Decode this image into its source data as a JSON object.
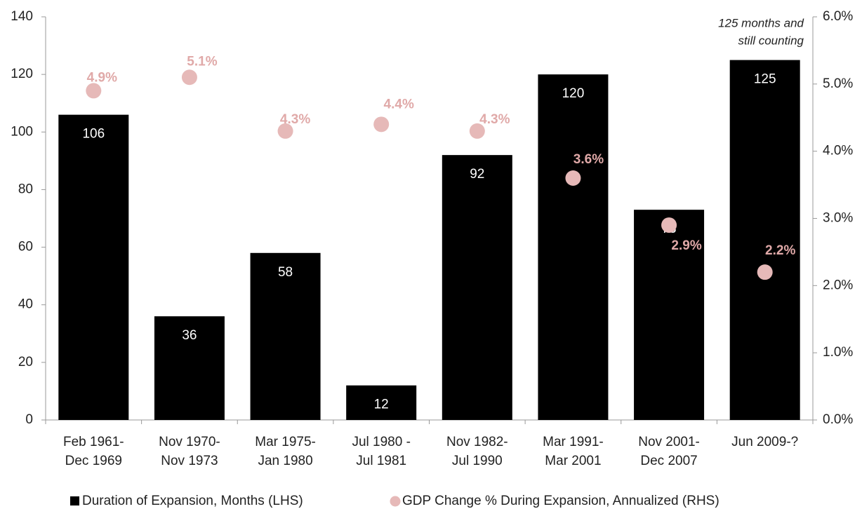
{
  "chart_data": {
    "type": "bar",
    "categories": [
      [
        "Feb 1961-",
        "Dec 1969"
      ],
      [
        "Nov 1970-",
        "Nov 1973"
      ],
      [
        "Mar 1975-",
        "Jan 1980"
      ],
      [
        "Jul 1980   -",
        "Jul 1981"
      ],
      [
        "Nov 1982-",
        "Jul 1990"
      ],
      [
        "Mar 1991-",
        "Mar 2001"
      ],
      [
        "Nov 2001-",
        "Dec 2007"
      ],
      [
        "Jun 2009-?"
      ]
    ],
    "series": [
      {
        "name": "Duration of Expansion, Months (LHS)",
        "type": "bar",
        "color": "#000000",
        "values": [
          106,
          36,
          58,
          12,
          92,
          120,
          73,
          125
        ]
      },
      {
        "name": "GDP Change % During Expansion, Annualized (RHS)",
        "type": "scatter",
        "axis": "y2",
        "color": "#e6b9b8",
        "values": [
          4.9,
          5.1,
          4.3,
          4.4,
          4.3,
          3.6,
          2.9,
          2.2
        ],
        "value_labels": [
          "4.9%",
          "5.1%",
          "4.3%",
          "4.4%",
          "4.3%",
          "3.6%",
          "2.9%",
          "2.2%"
        ]
      }
    ],
    "ylim": [
      0,
      140
    ],
    "yticks": [
      0,
      20,
      40,
      60,
      80,
      100,
      120,
      140
    ],
    "y2lim": [
      0,
      6
    ],
    "y2ticks": [
      {
        "value": 0,
        "label": "0.0%"
      },
      {
        "value": 1,
        "label": "1.0%"
      },
      {
        "value": 2,
        "label": "2.0%"
      },
      {
        "value": 3,
        "label": "3.0%"
      },
      {
        "value": 4,
        "label": "4.0%"
      },
      {
        "value": 5,
        "label": "5.0%"
      },
      {
        "value": 6,
        "label": "6.0%"
      }
    ],
    "annotation": [
      "125 months and",
      "still counting"
    ],
    "legend": "bottom"
  }
}
